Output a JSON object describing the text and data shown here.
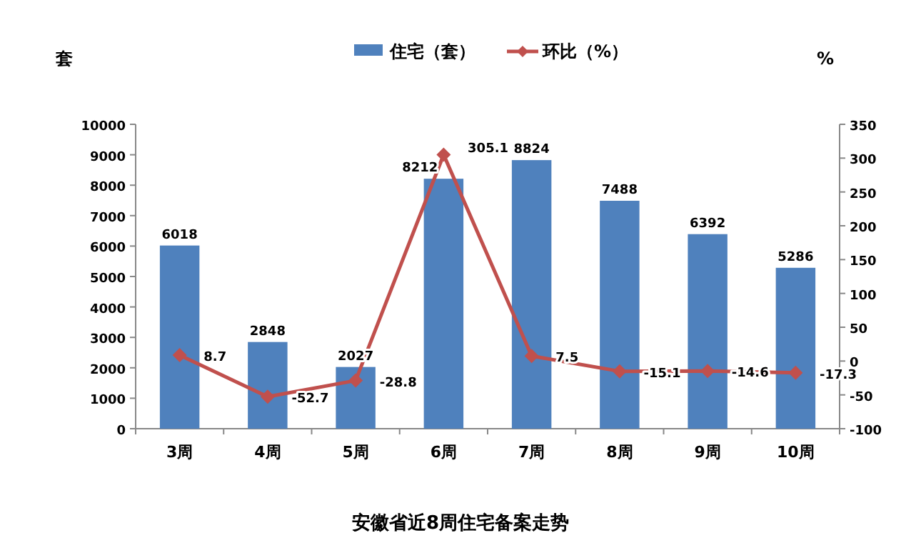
{
  "chart_data": {
    "type": "bar",
    "title": "安徽省近8周住宅备案走势",
    "ylabel": "套",
    "y2label": "%",
    "categories": [
      "3周",
      "4周",
      "5周",
      "6周",
      "7周",
      "8周",
      "9周",
      "10周"
    ],
    "series": [
      {
        "name": "住宅（套）",
        "color": "#4f81bd",
        "values": [
          6018,
          2848,
          2027,
          8212,
          8824,
          7488,
          6392,
          5286
        ]
      },
      {
        "name": "环比（%）",
        "type": "line",
        "axis": "y2",
        "color": "#c0504d",
        "marker": "diamond",
        "values": [
          8.7,
          -52.7,
          -28.8,
          305.1,
          7.5,
          -15.1,
          -14.6,
          -17.3
        ]
      }
    ],
    "ylim": [
      0,
      10000
    ],
    "yticks": [
      0,
      1000,
      2000,
      3000,
      4000,
      5000,
      6000,
      7000,
      8000,
      9000,
      10000
    ],
    "y2lim": [
      -100,
      350
    ],
    "y2ticks": [
      -100,
      -50,
      0,
      50,
      100,
      150,
      200,
      250,
      300,
      350
    ],
    "data_labels": true,
    "legend": "top",
    "grid": false
  }
}
